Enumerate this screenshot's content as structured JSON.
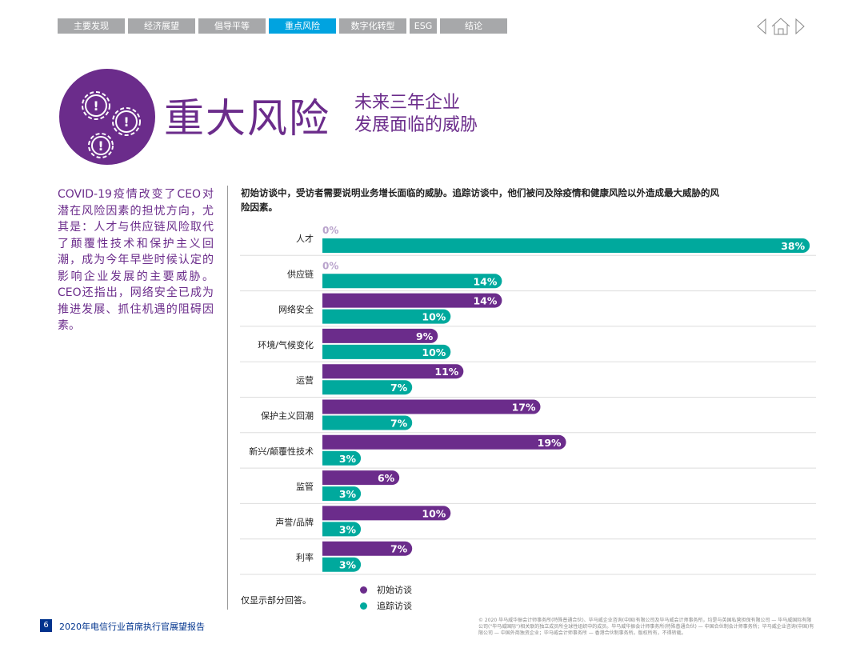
{
  "nav": {
    "tabs": [
      "主要发现",
      "经济展望",
      "倡导平等",
      "重点风险",
      "数字化转型",
      "ESG",
      "结论"
    ],
    "active": 3
  },
  "header": {
    "title": "重大风险",
    "subtitle_line1": "未来三年企业",
    "subtitle_line2": "发展面临的威胁",
    "icon": "gears-warning-icon"
  },
  "intro": "COVID-19疫情改变了CEO对潜在风险因素的担忧方向，尤其是：人才与供应链风险取代了颠覆性技术和保护主义回潮，成为今年早些时候认定的影响企业发展的主要威胁。CEO还指出，网络安全已成为推进发展、抓住机遇的阻碍因素。",
  "chart_note": "初始访谈中，受访者需要说明业务增长面临的威胁。追踪访谈中，他们被问及除疫情和健康风险以外造成最大威胁的风险因素。",
  "chart_data": {
    "type": "bar",
    "orientation": "horizontal",
    "unit": "%",
    "categories": [
      "人才",
      "供应链",
      "网络安全",
      "环境/气候变化",
      "运营",
      "保护主义回潮",
      "新兴/颠覆性技术",
      "监管",
      "声誉/品牌",
      "利率"
    ],
    "series": [
      {
        "name": "初始访谈",
        "color": "#6b2c8b",
        "values": [
          0,
          0,
          14,
          9,
          11,
          17,
          19,
          6,
          10,
          7
        ]
      },
      {
        "name": "追踪访谈",
        "color": "#00a99d",
        "values": [
          38,
          14,
          10,
          10,
          7,
          7,
          3,
          3,
          3,
          3
        ]
      }
    ],
    "zero_label_color": "#b9a3cc"
  },
  "footnote": "仅显示部分回答。",
  "footer": {
    "page": "6",
    "doc_title": "2020年电信行业首席执行官展望报告",
    "copyright": "© 2020 毕马威华振会计师事务所(特殊普通合伙)、毕马威企业咨询(中国)有限公司及毕马威会计师事务所，均是与英国私营担保有限公司 — 毕马威国际有限公司(\"毕马威国际\")相关联的独立成员所全球性组织中的成员。毕马威华振会计师事务所(特殊普通合伙) — 中国合伙制会计师事务所；毕马威企业咨询(中国)有限公司 — 中国外商独资企业；毕马威会计师事务所 — 香港合伙制事务所。版权所有，不得转载。"
  }
}
